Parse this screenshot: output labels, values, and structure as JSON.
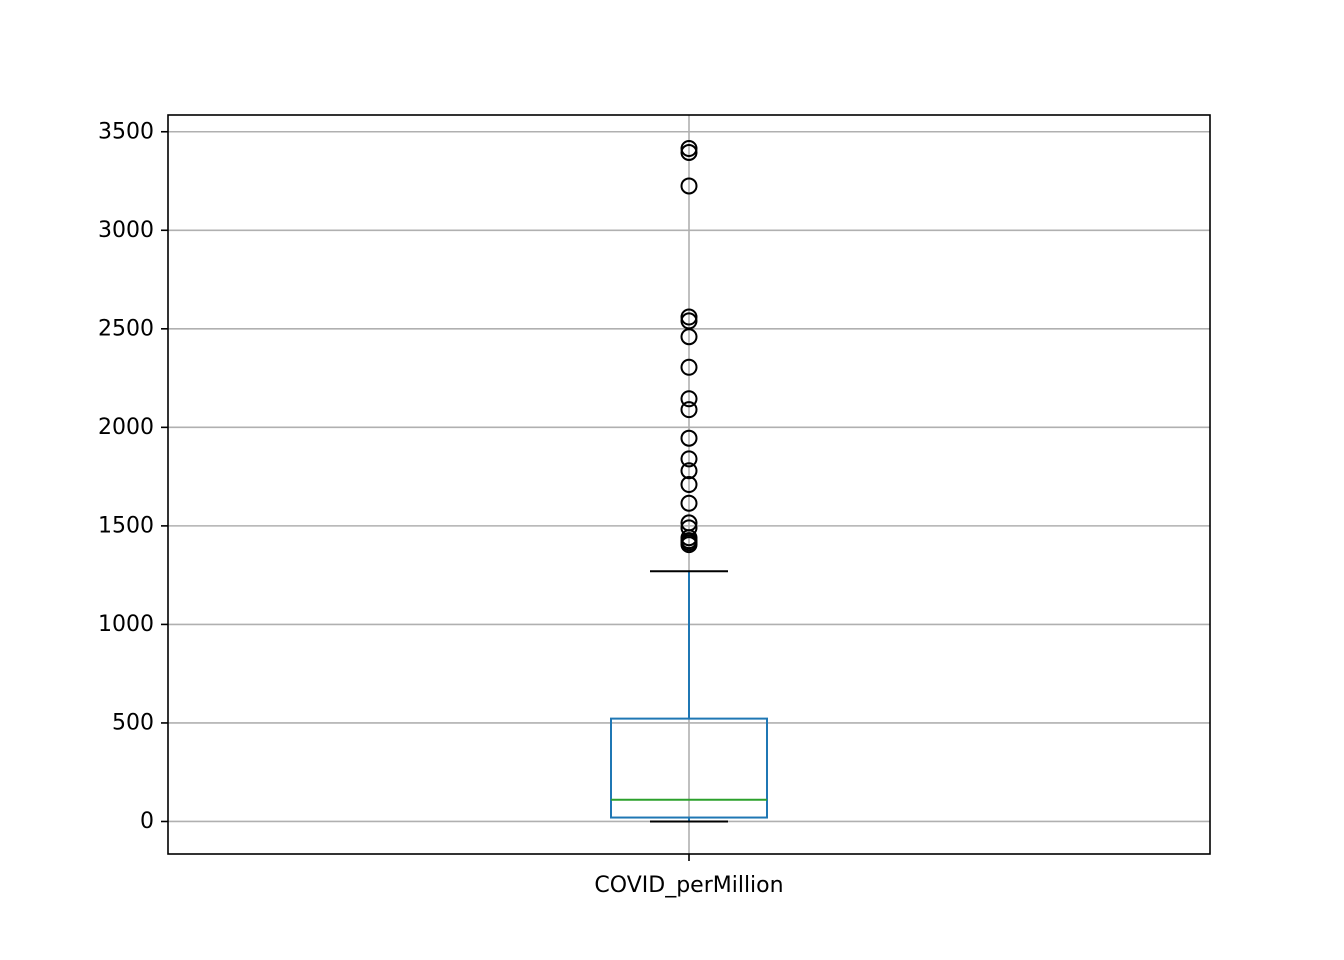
{
  "chart_data": {
    "type": "box",
    "title": "",
    "xlabel": "",
    "ylabel": "",
    "categories": [
      "COVID_perMillion"
    ],
    "ylim": [
      -165,
      3585
    ],
    "yticks": [
      0,
      500,
      1000,
      1500,
      2000,
      2500,
      3000,
      3500
    ],
    "grid": true,
    "series": [
      {
        "whisker_low": 0,
        "q1": 20,
        "median": 110,
        "q3": 522,
        "whisker_high": 1270,
        "outliers": [
          1405,
          1415,
          1425,
          1440,
          1490,
          1515,
          1615,
          1710,
          1780,
          1840,
          1945,
          2090,
          2145,
          2305,
          2460,
          2540,
          2560,
          3225,
          3395,
          3415
        ]
      }
    ],
    "colors": {
      "box": "#1f77b4",
      "median": "#2ca02c",
      "whisker_cap": "#000000",
      "outlier": "#000000",
      "grid": "#b0b0b0"
    }
  }
}
